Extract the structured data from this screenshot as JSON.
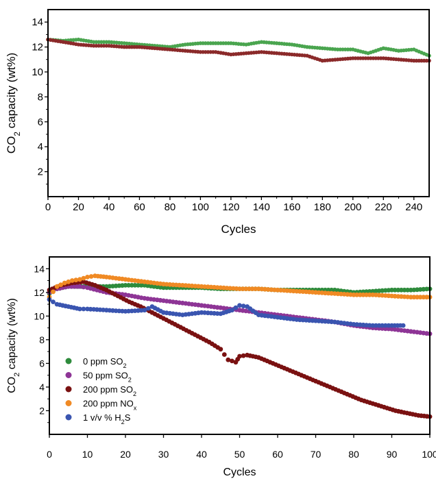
{
  "chart_data": [
    {
      "type": "scatter",
      "title": "",
      "xlabel": "Cycles",
      "ylabel": "CO2 capacity (wt%)",
      "ylabel_parts": [
        "CO",
        "2",
        " capacity (wt%)"
      ],
      "xlim": [
        0,
        250
      ],
      "ylim": [
        0,
        15
      ],
      "xticks": [
        0,
        20,
        40,
        60,
        80,
        100,
        120,
        140,
        160,
        180,
        200,
        220,
        240
      ],
      "yticks": [
        2,
        4,
        6,
        8,
        10,
        12,
        14
      ],
      "grid": false,
      "legend": "none",
      "series": [
        {
          "color": "#4aa54f",
          "x": [
            0,
            10,
            20,
            30,
            40,
            50,
            60,
            70,
            80,
            90,
            100,
            110,
            120,
            130,
            140,
            150,
            160,
            170,
            180,
            190,
            200,
            210,
            220,
            230,
            240,
            250
          ],
          "y": [
            12.6,
            12.5,
            12.6,
            12.4,
            12.4,
            12.3,
            12.2,
            12.1,
            12.0,
            12.2,
            12.3,
            12.3,
            12.3,
            12.2,
            12.4,
            12.3,
            12.2,
            12.0,
            11.9,
            11.8,
            11.8,
            11.5,
            11.9,
            11.7,
            11.8,
            11.3
          ]
        },
        {
          "color": "#8b2a2a",
          "x": [
            0,
            10,
            20,
            30,
            40,
            50,
            60,
            70,
            80,
            90,
            100,
            110,
            120,
            130,
            140,
            150,
            160,
            170,
            180,
            190,
            200,
            210,
            220,
            230,
            240,
            250
          ],
          "y": [
            12.6,
            12.4,
            12.2,
            12.1,
            12.1,
            12.0,
            12.0,
            11.9,
            11.8,
            11.7,
            11.6,
            11.6,
            11.4,
            11.5,
            11.6,
            11.5,
            11.4,
            11.3,
            10.9,
            11.0,
            11.1,
            11.1,
            11.1,
            11.0,
            10.9,
            10.9
          ]
        }
      ]
    },
    {
      "type": "scatter",
      "title": "",
      "xlabel": "Cycles",
      "ylabel": "CO2 capacity (wt%)",
      "ylabel_parts": [
        "CO",
        "2",
        " capacity (wt%)"
      ],
      "xlim": [
        0,
        100
      ],
      "ylim": [
        0,
        15
      ],
      "xticks": [
        0,
        10,
        20,
        30,
        40,
        50,
        60,
        70,
        80,
        90,
        100
      ],
      "yticks": [
        2,
        4,
        6,
        8,
        10,
        12,
        14
      ],
      "grid": false,
      "legend": "bottom-left",
      "series": [
        {
          "name": "0 ppm SO2",
          "name_parts": [
            "0 ppm SO",
            "2",
            ""
          ],
          "color": "#2e8b3c",
          "x": [
            0,
            2,
            5,
            10,
            15,
            20,
            25,
            30,
            35,
            40,
            45,
            50,
            55,
            60,
            65,
            70,
            75,
            80,
            85,
            90,
            95,
            100
          ],
          "y": [
            11.9,
            12.3,
            12.5,
            12.5,
            12.5,
            12.6,
            12.6,
            12.4,
            12.4,
            12.4,
            12.3,
            12.3,
            12.3,
            12.2,
            12.2,
            12.2,
            12.2,
            12.0,
            12.1,
            12.2,
            12.2,
            12.3
          ]
        },
        {
          "name": "50 ppm SO2",
          "name_parts": [
            "50 ppm SO",
            "2",
            ""
          ],
          "color": "#8e3596",
          "x": [
            0,
            2,
            5,
            8,
            10,
            15,
            20,
            25,
            30,
            35,
            40,
            45,
            50,
            55,
            60,
            65,
            70,
            75,
            80,
            85,
            90,
            95,
            100
          ],
          "y": [
            12.0,
            12.3,
            12.5,
            12.5,
            12.4,
            12.0,
            11.8,
            11.5,
            11.3,
            11.1,
            10.9,
            10.7,
            10.5,
            10.3,
            10.1,
            9.9,
            9.7,
            9.5,
            9.2,
            9.0,
            8.9,
            8.7,
            8.5
          ]
        },
        {
          "name": "200 ppm SO2",
          "name_parts": [
            "200 ppm SO",
            "2",
            ""
          ],
          "color": "#7a1111",
          "x": [
            0,
            3,
            6,
            9,
            12,
            15,
            18,
            21,
            24,
            27,
            30,
            33,
            36,
            39,
            42,
            45,
            47,
            49,
            50,
            52,
            55,
            58,
            61,
            64,
            67,
            70,
            73,
            76,
            79,
            82,
            85,
            88,
            91,
            94,
            97,
            100
          ],
          "y": [
            12.2,
            12.6,
            12.8,
            12.9,
            12.6,
            12.2,
            11.7,
            11.2,
            10.8,
            10.3,
            9.8,
            9.3,
            8.8,
            8.3,
            7.8,
            7.2,
            6.3,
            6.1,
            6.6,
            6.7,
            6.5,
            6.1,
            5.7,
            5.3,
            4.9,
            4.5,
            4.1,
            3.7,
            3.3,
            2.9,
            2.6,
            2.3,
            2.0,
            1.8,
            1.6,
            1.5
          ]
        },
        {
          "name": "200 ppm NOx",
          "name_parts": [
            "200 ppm NO",
            "x",
            ""
          ],
          "color": "#f08a24",
          "x": [
            0,
            2,
            4,
            6,
            8,
            10,
            12,
            15,
            20,
            25,
            30,
            35,
            40,
            45,
            50,
            55,
            60,
            65,
            70,
            75,
            80,
            85,
            90,
            95,
            100
          ],
          "y": [
            11.6,
            12.5,
            12.8,
            13.0,
            13.1,
            13.3,
            13.4,
            13.3,
            13.1,
            12.9,
            12.7,
            12.6,
            12.5,
            12.4,
            12.3,
            12.3,
            12.2,
            12.1,
            12.0,
            11.9,
            11.8,
            11.8,
            11.7,
            11.6,
            11.6
          ]
        },
        {
          "name": "1 v/v % H2S",
          "name_parts": [
            "1 v/v % H",
            "2",
            "S"
          ],
          "color": "#3a55b0",
          "x": [
            0,
            2,
            5,
            8,
            10,
            15,
            20,
            25,
            27,
            30,
            35,
            40,
            45,
            48,
            50,
            52,
            55,
            60,
            65,
            70,
            75,
            80,
            85,
            90,
            93
          ],
          "y": [
            11.4,
            11.0,
            10.8,
            10.6,
            10.6,
            10.5,
            10.4,
            10.5,
            10.8,
            10.3,
            10.1,
            10.3,
            10.2,
            10.5,
            10.9,
            10.8,
            10.1,
            9.9,
            9.7,
            9.6,
            9.5,
            9.3,
            9.2,
            9.2,
            9.2
          ]
        }
      ]
    }
  ]
}
